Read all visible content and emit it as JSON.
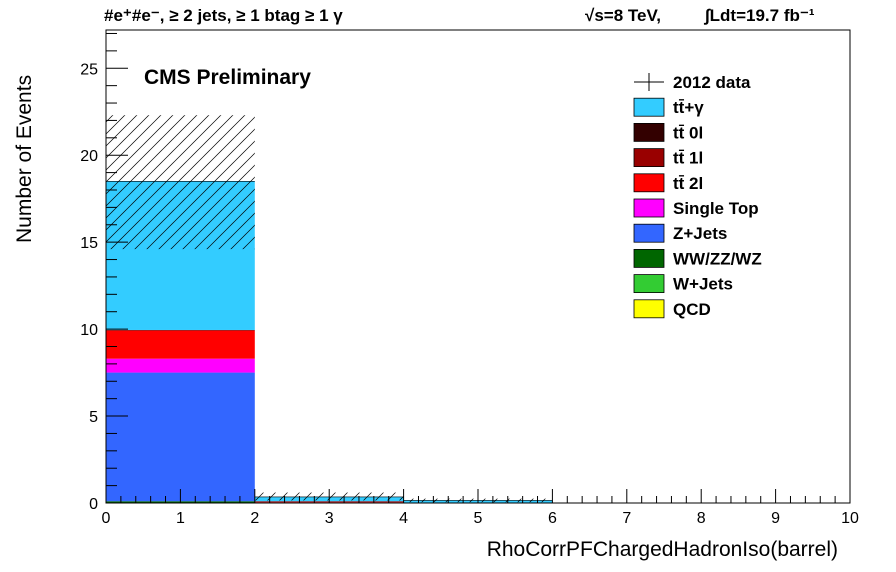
{
  "header": {
    "selection": "#e⁺#e⁻, ≥ 2 jets, ≥ 1 btag ≥ 1 γ",
    "energy": "√s=8 TeV,",
    "lumi": "∫Ldt=19.7 fb⁻¹"
  },
  "cms_label": "CMS Preliminary",
  "chart_data": {
    "type": "bar",
    "stacked": true,
    "xlabel": "RhoCorrPFChargedHadronIso(barrel)",
    "ylabel": "Number of Events",
    "xlim": [
      0,
      10
    ],
    "ylim": [
      0,
      27.2
    ],
    "xticks": [
      0,
      1,
      2,
      3,
      4,
      5,
      6,
      7,
      8,
      9,
      10
    ],
    "yticks": [
      0,
      5,
      10,
      15,
      20,
      25
    ],
    "bins": [
      [
        0,
        2
      ],
      [
        2,
        4
      ],
      [
        4,
        6
      ],
      [
        6,
        10
      ]
    ],
    "series": [
      {
        "name": "QCD",
        "color": "#ffff00",
        "values": [
          0,
          0,
          0,
          0
        ]
      },
      {
        "name": "W+Jets",
        "color": "#33cc33",
        "values": [
          0,
          0,
          0,
          0
        ]
      },
      {
        "name": "WW/ZZ/WZ",
        "color": "#006600",
        "values": [
          0.1,
          0,
          0,
          0
        ]
      },
      {
        "name": "Z+Jets",
        "color": "#3366ff",
        "values": [
          7.4,
          0,
          0,
          0
        ]
      },
      {
        "name": "Single Top",
        "color": "#ff00ff",
        "values": [
          0.8,
          0,
          0,
          0
        ]
      },
      {
        "name": "tt̄ 2l",
        "color": "#ff0000",
        "values": [
          1.6,
          0.05,
          0,
          0
        ]
      },
      {
        "name": "tt̄ 1l",
        "color": "#990000",
        "values": [
          0.05,
          0.05,
          0,
          0
        ]
      },
      {
        "name": "tt̄ 0l",
        "color": "#330000",
        "values": [
          0,
          0,
          0,
          0
        ]
      },
      {
        "name": "tt̄+γ",
        "color": "#33ccff",
        "values": [
          8.55,
          0.25,
          0.15,
          0
        ]
      }
    ],
    "uncertainty": {
      "band": [
        [
          14.6,
          22.3
        ],
        [
          0.15,
          0.6
        ],
        [
          0.05,
          0.25
        ],
        [
          0,
          0
        ]
      ]
    },
    "legend": {
      "placement": "top-right",
      "entries": [
        {
          "label": "2012 data",
          "kind": "data"
        },
        {
          "label": "tt̄+γ",
          "color": "#33ccff"
        },
        {
          "label": "tt̄ 0l",
          "color": "#330000"
        },
        {
          "label": "tt̄ 1l",
          "color": "#990000"
        },
        {
          "label": "tt̄ 2l",
          "color": "#ff0000"
        },
        {
          "label": "Single Top",
          "color": "#ff00ff"
        },
        {
          "label": "Z+Jets",
          "color": "#3366ff"
        },
        {
          "label": "WW/ZZ/WZ",
          "color": "#006600"
        },
        {
          "label": "W+Jets",
          "color": "#33cc33"
        },
        {
          "label": "QCD",
          "color": "#ffff00"
        }
      ]
    }
  }
}
